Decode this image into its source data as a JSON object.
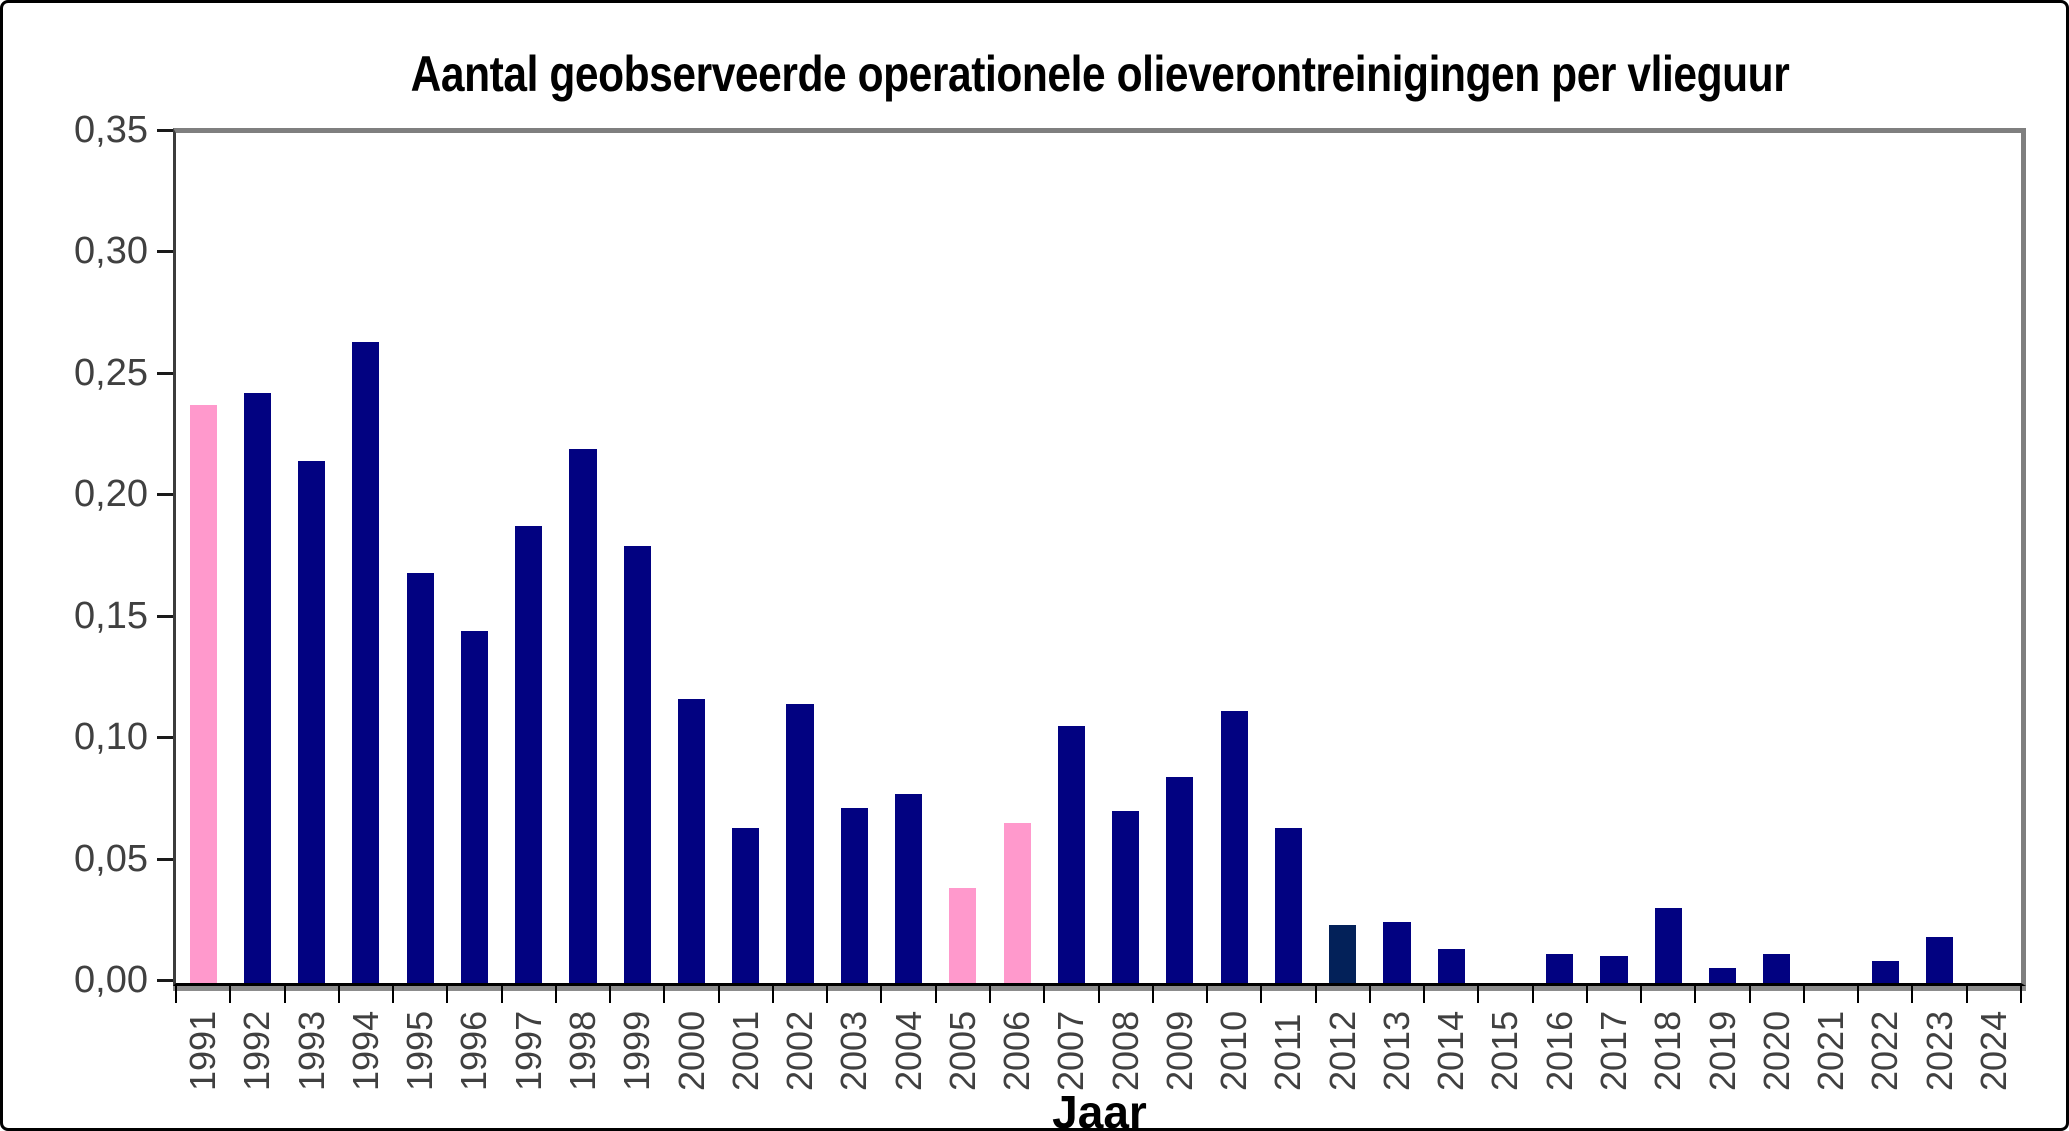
{
  "window": {
    "background": "#FFFFFF",
    "border_color": "#000000"
  },
  "chart_data": {
    "type": "bar",
    "title": "Aantal geobserveerde operationele olieverontreinigingen per vlieguur",
    "xlabel": "Jaar",
    "ylabel": "",
    "ylim": [
      0,
      0.35
    ],
    "ytick_interval": 0.05,
    "ytick_labels": [
      "0,35",
      "0,30",
      "0,25",
      "0,20",
      "0,15",
      "0,10",
      "0,05",
      "0,00"
    ],
    "grid": false,
    "legend": false,
    "categories": [
      1991,
      1992,
      1993,
      1994,
      1995,
      1996,
      1997,
      1998,
      1999,
      2000,
      2001,
      2002,
      2003,
      2004,
      2005,
      2006,
      2007,
      2008,
      2009,
      2010,
      2011,
      2012,
      2013,
      2014,
      2015,
      2016,
      2017,
      2018,
      2019,
      2020,
      2021,
      2022,
      2023,
      2024
    ],
    "values": [
      0.238,
      0.243,
      0.215,
      0.264,
      0.169,
      0.145,
      0.188,
      0.22,
      0.18,
      0.117,
      0.064,
      0.115,
      0.072,
      0.078,
      0.039,
      0.066,
      0.106,
      0.071,
      0.085,
      0.112,
      0.064,
      0.024,
      0.025,
      0.014,
      0,
      0.012,
      0.011,
      0.031,
      0.006,
      0.012,
      0,
      0.009,
      0.019,
      0
    ],
    "bar_color_default": "#020281",
    "bar_color_highlight": "#FF99CC",
    "bar_color_special": "#032159",
    "highlighted_years": [
      1991,
      2005,
      2006
    ],
    "special_year": 2012,
    "frame_color": "#7F7F7F",
    "axis_color": "#000000",
    "tick_label_color": "#404040"
  }
}
